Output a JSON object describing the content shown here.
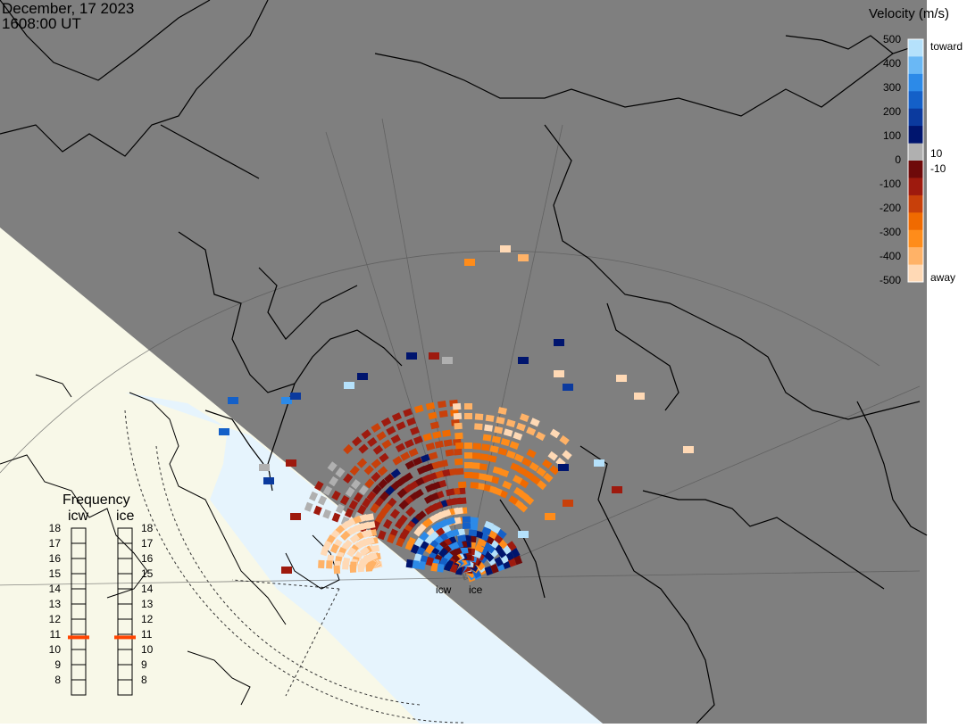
{
  "header": {
    "date": "December, 17 2023",
    "time": "1608:00 UT"
  },
  "colors": {
    "night": "#7f7f7f",
    "day_land": "#f8f8e8",
    "day_sea": "#e6f4fd",
    "coast": "#000000"
  },
  "legend": {
    "title": "Velocity (m/s)",
    "tick_labels": [
      "500",
      "400",
      "300",
      "200",
      "100",
      "0",
      "-100",
      "-200",
      "-300",
      "-400",
      "-500"
    ],
    "toward_label": "toward",
    "away_label": "away",
    "pos_threshold": "10",
    "neg_threshold": "-10",
    "colors": [
      "#ffd9b5",
      "#ffb267",
      "#ff8c1a",
      "#f06a00",
      "#c8400a",
      "#9e1a0e",
      "#6e0a0a",
      "#b0b0b0",
      "#00156e",
      "#0b3a9e",
      "#1460c8",
      "#2c8ae8",
      "#6ab8f5",
      "#b5e1fb"
    ]
  },
  "frequency": {
    "title": "Frequency",
    "radars": [
      {
        "name": "icw",
        "selected": 10.8
      },
      {
        "name": "ice",
        "selected": 10.8
      }
    ],
    "scale": [
      "18",
      "17",
      "16",
      "15",
      "14",
      "13",
      "12",
      "11",
      "10",
      "9",
      "8"
    ],
    "marker_color": "#ff4400"
  },
  "radar_labels": [
    "icw",
    "ice"
  ]
}
